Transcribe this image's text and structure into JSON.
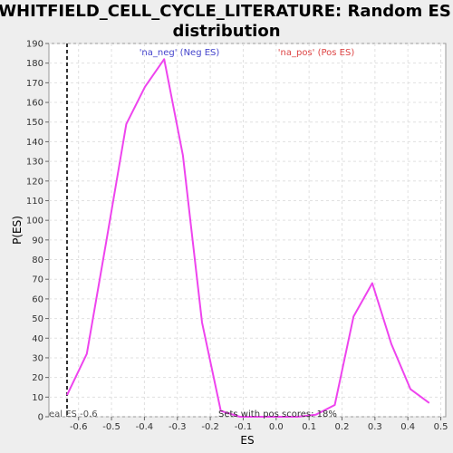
{
  "chart_data": {
    "type": "line",
    "title_lines": [
      "WHITFIELD_CELL_CYCLE_LITERATURE: Random ES",
      "distribution"
    ],
    "xlabel": "ES",
    "ylabel": "P(ES)",
    "xlim": [
      -0.69,
      0.515
    ],
    "ylim": [
      0,
      190
    ],
    "x_ticks": [
      "-0.6",
      "-0.5",
      "-0.4",
      "-0.3",
      "-0.2",
      "-0.1",
      "0.0",
      "0.1",
      "0.2",
      "0.3",
      "0.4",
      "0.5"
    ],
    "x_tick_values": [
      -0.6,
      -0.5,
      -0.4,
      -0.3,
      -0.2,
      -0.1,
      0.0,
      0.1,
      0.2,
      0.3,
      0.4,
      0.5
    ],
    "y_ticks": [
      0,
      10,
      20,
      30,
      40,
      50,
      60,
      70,
      80,
      90,
      100,
      110,
      120,
      130,
      140,
      150,
      160,
      170,
      180,
      190
    ],
    "grid": true,
    "series": [
      {
        "color": "#ee44ee",
        "x": [
          -0.635,
          -0.575,
          -0.515,
          -0.455,
          -0.398,
          -0.34,
          -0.283,
          -0.225,
          -0.168,
          -0.11,
          -0.05,
          0.005,
          0.065,
          0.12,
          0.178,
          0.235,
          0.292,
          0.35,
          0.408,
          0.465
        ],
        "y": [
          11,
          32,
          90,
          149,
          168,
          182,
          133,
          48,
          3,
          0,
          0,
          0,
          0,
          1,
          6,
          51,
          68,
          37,
          14,
          7
        ]
      }
    ],
    "real_es": {
      "value": -0.635,
      "label": "eal ES -0.6"
    },
    "annotations": {
      "neg_label": "'na_neg' (Neg ES)",
      "neg_color": "#4444cc",
      "pos_label": "'na_pos' (Pos ES)",
      "pos_color": "#dd4444",
      "pos_scores": "Sets with pos scores: 18%"
    }
  }
}
